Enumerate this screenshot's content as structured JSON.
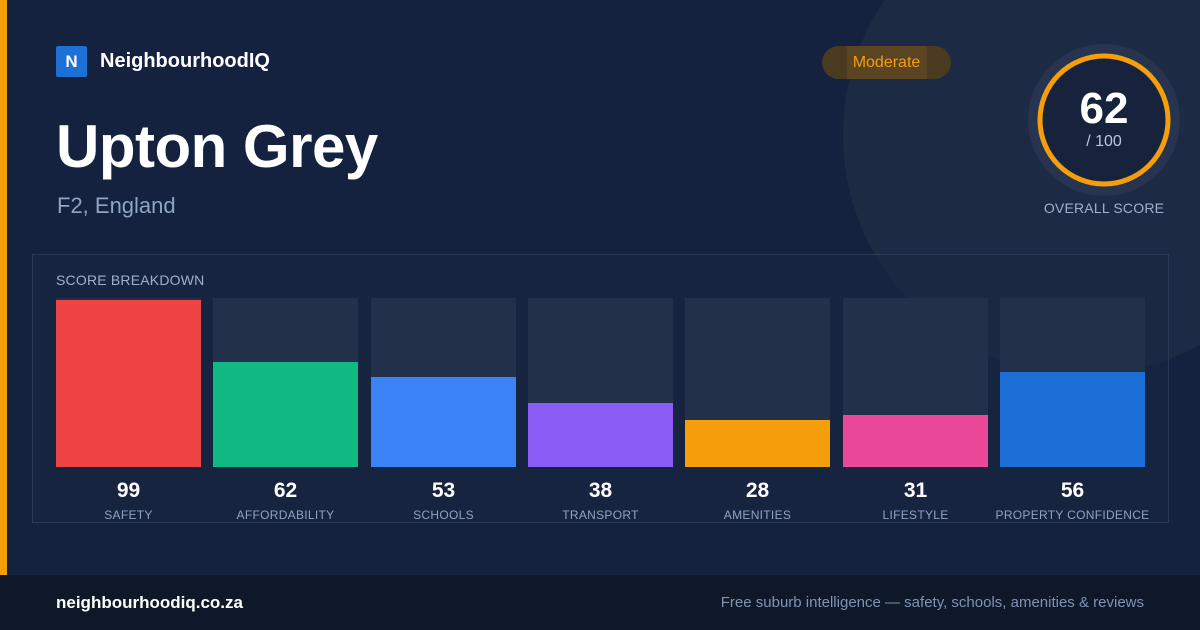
{
  "brand": {
    "badge": "N",
    "name": "NeighbourhoodIQ"
  },
  "suburb": {
    "name": "Upton Grey",
    "location": "F2, England"
  },
  "rating": {
    "label": "Moderate",
    "color": "#f59e0b"
  },
  "overall": {
    "score": "62",
    "max": "/ 100",
    "caption": "OVERALL SCORE",
    "ring_color": "#f59e0b",
    "fraction": 0.62
  },
  "breakdown": {
    "title": "SCORE BREAKDOWN",
    "categories": [
      {
        "label": "SAFETY",
        "value": "99",
        "score": 99,
        "color": "#ef4444"
      },
      {
        "label": "AFFORDABILITY",
        "value": "62",
        "score": 62,
        "color": "#10b981"
      },
      {
        "label": "SCHOOLS",
        "value": "53",
        "score": 53,
        "color": "#3b82f6"
      },
      {
        "label": "TRANSPORT",
        "value": "38",
        "score": 38,
        "color": "#8b5cf6"
      },
      {
        "label": "AMENITIES",
        "value": "28",
        "score": 28,
        "color": "#f59e0b"
      },
      {
        "label": "LIFESTYLE",
        "value": "31",
        "score": 31,
        "color": "#ec4899"
      },
      {
        "label": "PROPERTY CONFIDENCE",
        "value": "56",
        "score": 56,
        "color": "#1d6fd8"
      }
    ]
  },
  "footer": {
    "site": "neighbourhoodiq.co.za",
    "tagline": "Free suburb intelligence — safety, schools, amenities & reviews"
  }
}
